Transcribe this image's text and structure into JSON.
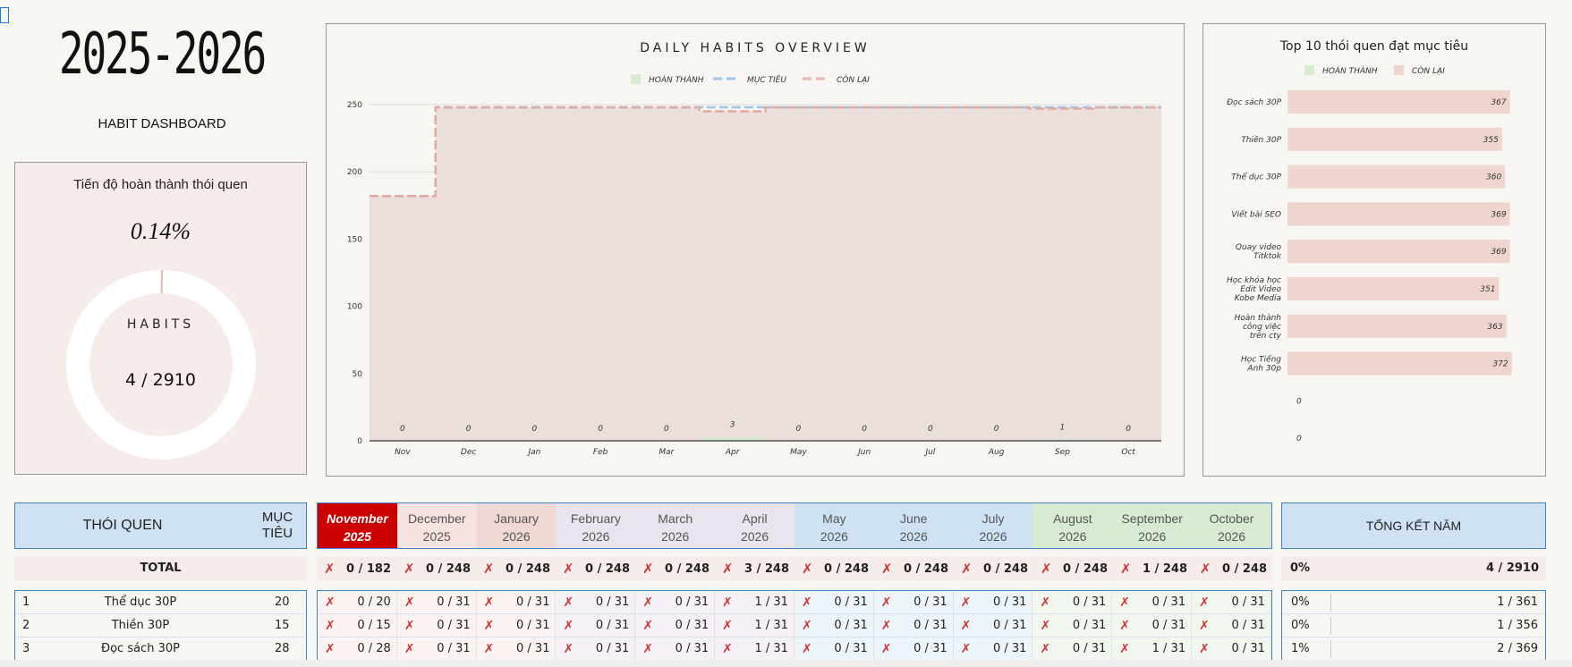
{
  "title": {
    "year": "2025-2026",
    "subtitle": "HABIT DASHBOARD"
  },
  "progress": {
    "title": "Tiến độ hoàn thành thói quen",
    "percent": "0.14%",
    "ring_label": "HABITS",
    "count": "4  /  2910",
    "completed_fraction": 0.0014
  },
  "colors": {
    "done": "#d9ead3",
    "target": "#9fc5e8",
    "remaining": "#e6b8af",
    "remaining_fill": "#ebdfdc",
    "current_month": "#cc0000"
  },
  "overview_chart": {
    "title": "DAILY HABITS OVERVIEW",
    "legend": [
      "HOÀN THÀNH",
      "MỤC TIÊU",
      "CÒN LẠI"
    ],
    "chart_data": {
      "type": "area",
      "categories": [
        "Nov",
        "Dec",
        "Jan",
        "Feb",
        "Mar",
        "Apr",
        "May",
        "Jun",
        "Jul",
        "Aug",
        "Sep",
        "Oct"
      ],
      "series": [
        {
          "name": "HOÀN THÀNH",
          "values": [
            0,
            0,
            0,
            0,
            0,
            3,
            0,
            0,
            0,
            0,
            1,
            0
          ]
        },
        {
          "name": "MỤC TIÊU",
          "values": [
            182,
            248,
            248,
            248,
            248,
            248,
            248,
            248,
            248,
            248,
            248,
            248
          ]
        },
        {
          "name": "CÒN LẠI",
          "values": [
            182,
            248,
            248,
            248,
            248,
            245,
            248,
            248,
            248,
            248,
            247,
            248
          ]
        }
      ],
      "ylim": [
        0,
        250
      ],
      "yticks": [
        "0",
        "50",
        "100",
        "150",
        "200",
        "250"
      ],
      "grid": true,
      "legend_position": "top"
    }
  },
  "top10_chart": {
    "title": "Top 10 thói quen đạt mục tiêu",
    "legend": [
      "HOÀN THÀNH",
      "CÒN LẠI"
    ],
    "chart_data": {
      "type": "bar",
      "categories": [
        "Đọc sách 30P",
        "Thiền 30P",
        "Thể dục 30P",
        "Viết bài SEO",
        "Quay video Titktok",
        "Học khóa học Edit Video Kobe Media",
        "Hoàn thành công việc trên cty",
        "Học Tiếng Anh 30p",
        "",
        ""
      ],
      "series": [
        {
          "name": "HOÀN THÀNH",
          "values": [
            2,
            1,
            1,
            0,
            0,
            0,
            0,
            0,
            0,
            0
          ]
        },
        {
          "name": "CÒN LẠI",
          "values": [
            367,
            355,
            360,
            369,
            369,
            351,
            363,
            372,
            0,
            0
          ]
        }
      ],
      "value_labels": [
        "367",
        "355",
        "360",
        "369",
        "369",
        "351",
        "363",
        "372",
        "0",
        "0"
      ],
      "legend_position": "top"
    }
  },
  "table": {
    "habit_header": "THÓI QUEN",
    "target_header": [
      "MỤC",
      "TIÊU"
    ],
    "summary_header": "TỔNG KẾT NĂM",
    "months": [
      {
        "name": "November",
        "year": "2025",
        "bg": "#cc0000"
      },
      {
        "name": "December",
        "year": "2025",
        "bg": "#f6e3df"
      },
      {
        "name": "January",
        "year": "2026",
        "bg": "#f0d8d4"
      },
      {
        "name": "February",
        "year": "2026",
        "bg": "#ebe4ef"
      },
      {
        "name": "March",
        "year": "2026",
        "bg": "#ebe4ef"
      },
      {
        "name": "April",
        "year": "2026",
        "bg": "#ebe4ef"
      },
      {
        "name": "May",
        "year": "2026",
        "bg": "#cfe2f3"
      },
      {
        "name": "June",
        "year": "2026",
        "bg": "#cfe2f3"
      },
      {
        "name": "July",
        "year": "2026",
        "bg": "#cfe2f3"
      },
      {
        "name": "August",
        "year": "2026",
        "bg": "#d9ead3"
      },
      {
        "name": "September",
        "year": "2026",
        "bg": "#d9ead3"
      },
      {
        "name": "October",
        "year": "2026",
        "bg": "#d9ead3"
      }
    ],
    "total_label": "TOTAL",
    "totals": [
      "0 / 182",
      "0 / 248",
      "0 / 248",
      "0 / 248",
      "0 / 248",
      "3 / 248",
      "0 / 248",
      "0 / 248",
      "0 / 248",
      "0 / 248",
      "1 / 248",
      "0 / 248"
    ],
    "total_summary": {
      "pct": "0%",
      "value": "4  /  2910"
    },
    "rows": [
      {
        "num": "1",
        "name": "Thể dục 30P",
        "target": "20",
        "months": [
          "0 / 20",
          "0 / 31",
          "0 / 31",
          "0 / 31",
          "0 / 31",
          "1 / 31",
          "0 / 31",
          "0 / 31",
          "0 / 31",
          "0 / 31",
          "0 / 31",
          "0 / 31"
        ],
        "pct": "0%",
        "summary": "1  /  361"
      },
      {
        "num": "2",
        "name": "Thiền 30P",
        "target": "15",
        "months": [
          "0 / 15",
          "0 / 31",
          "0 / 31",
          "0 / 31",
          "0 / 31",
          "1 / 31",
          "0 / 31",
          "0 / 31",
          "0 / 31",
          "0 / 31",
          "0 / 31",
          "0 / 31"
        ],
        "pct": "0%",
        "summary": "1  /  356"
      },
      {
        "num": "3",
        "name": "Đọc sách 30P",
        "target": "28",
        "months": [
          "0 / 28",
          "0 / 31",
          "0 / 31",
          "0 / 31",
          "0 / 31",
          "1 / 31",
          "0 / 31",
          "0 / 31",
          "0 / 31",
          "0 / 31",
          "1 / 31",
          "0 / 31"
        ],
        "pct": "1%",
        "summary": "2  /  369"
      }
    ],
    "x_mark": "✗"
  }
}
